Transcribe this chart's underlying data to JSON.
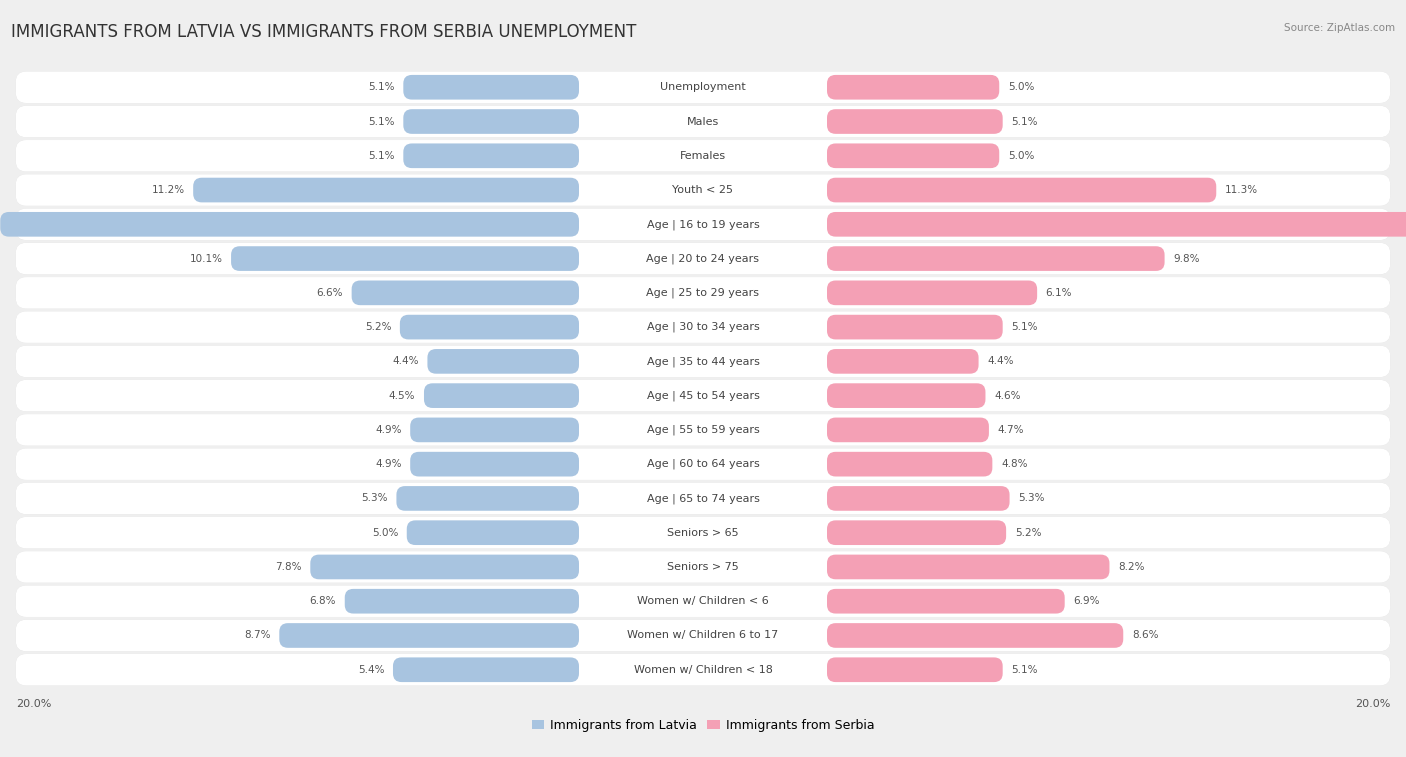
{
  "title": "IMMIGRANTS FROM LATVIA VS IMMIGRANTS FROM SERBIA UNEMPLOYMENT",
  "source": "Source: ZipAtlas.com",
  "categories": [
    "Unemployment",
    "Males",
    "Females",
    "Youth < 25",
    "Age | 16 to 19 years",
    "Age | 20 to 24 years",
    "Age | 25 to 29 years",
    "Age | 30 to 34 years",
    "Age | 35 to 44 years",
    "Age | 45 to 54 years",
    "Age | 55 to 59 years",
    "Age | 60 to 64 years",
    "Age | 65 to 74 years",
    "Seniors > 65",
    "Seniors > 75",
    "Women w/ Children < 6",
    "Women w/ Children 6 to 17",
    "Women w/ Children < 18"
  ],
  "latvia_values": [
    5.1,
    5.1,
    5.1,
    11.2,
    16.8,
    10.1,
    6.6,
    5.2,
    4.4,
    4.5,
    4.9,
    4.9,
    5.3,
    5.0,
    7.8,
    6.8,
    8.7,
    5.4
  ],
  "serbia_values": [
    5.0,
    5.1,
    5.0,
    11.3,
    18.1,
    9.8,
    6.1,
    5.1,
    4.4,
    4.6,
    4.7,
    4.8,
    5.3,
    5.2,
    8.2,
    6.9,
    8.6,
    5.1
  ],
  "max_val": 20.0,
  "latvia_color": "#a8c4e0",
  "serbia_color": "#f4a0b5",
  "latvia_label": "Immigrants from Latvia",
  "serbia_label": "Immigrants from Serbia",
  "bg_color": "#efefef",
  "bar_bg_color": "#ffffff",
  "title_fontsize": 12,
  "label_fontsize": 8.0,
  "value_fontsize": 7.5
}
